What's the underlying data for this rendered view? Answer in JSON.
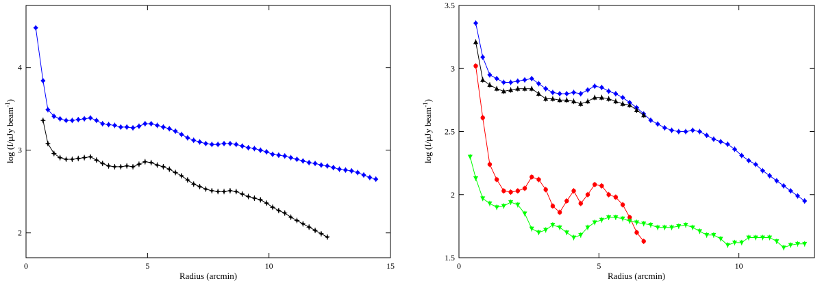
{
  "chart_data": [
    {
      "type": "line",
      "xlabel": "Radius (arcmin)",
      "ylabel_main": "log (I/μJy beam",
      "ylabel_sup": "-1",
      "ylabel_close": ")",
      "xlim": [
        0,
        15
      ],
      "ylim": [
        1.7,
        4.75
      ],
      "xticks": [
        0,
        5,
        10,
        15
      ],
      "xtick_labels": [
        "0",
        "5",
        "10",
        "15"
      ],
      "yticks": [
        2,
        3,
        4
      ],
      "ytick_labels": [
        "2",
        "3",
        "4"
      ],
      "series": [
        {
          "color": "#0000ff",
          "marker": "diamond",
          "x": [
            0.4,
            0.7,
            0.9,
            1.15,
            1.4,
            1.65,
            1.9,
            2.15,
            2.4,
            2.65,
            2.9,
            3.15,
            3.4,
            3.65,
            3.9,
            4.15,
            4.4,
            4.65,
            4.9,
            5.15,
            5.4,
            5.65,
            5.9,
            6.15,
            6.4,
            6.65,
            6.9,
            7.15,
            7.4,
            7.65,
            7.9,
            8.15,
            8.4,
            8.65,
            8.9,
            9.15,
            9.4,
            9.65,
            9.9,
            10.15,
            10.4,
            10.65,
            10.9,
            11.15,
            11.4,
            11.65,
            11.9,
            12.15,
            12.4,
            12.65,
            12.9,
            13.15,
            13.4,
            13.65,
            13.9,
            14.15,
            14.4
          ],
          "y": [
            4.48,
            3.84,
            3.49,
            3.41,
            3.38,
            3.36,
            3.36,
            3.37,
            3.38,
            3.39,
            3.36,
            3.32,
            3.31,
            3.3,
            3.28,
            3.28,
            3.27,
            3.29,
            3.32,
            3.32,
            3.3,
            3.28,
            3.26,
            3.23,
            3.19,
            3.15,
            3.12,
            3.1,
            3.08,
            3.07,
            3.07,
            3.08,
            3.08,
            3.07,
            3.05,
            3.03,
            3.02,
            3.0,
            2.98,
            2.95,
            2.94,
            2.93,
            2.91,
            2.89,
            2.87,
            2.85,
            2.84,
            2.82,
            2.81,
            2.79,
            2.77,
            2.76,
            2.75,
            2.73,
            2.7,
            2.67,
            2.65
          ]
        },
        {
          "color": "#000000",
          "marker": "star",
          "x": [
            0.7,
            0.9,
            1.15,
            1.4,
            1.65,
            1.9,
            2.15,
            2.4,
            2.65,
            2.9,
            3.15,
            3.4,
            3.65,
            3.9,
            4.15,
            4.4,
            4.65,
            4.9,
            5.15,
            5.4,
            5.65,
            5.9,
            6.15,
            6.4,
            6.65,
            6.9,
            7.15,
            7.4,
            7.65,
            7.9,
            8.15,
            8.4,
            8.65,
            8.9,
            9.15,
            9.4,
            9.65,
            9.9,
            10.15,
            10.4,
            10.65,
            10.9,
            11.15,
            11.4,
            11.65,
            11.9,
            12.15,
            12.4
          ],
          "y": [
            3.36,
            3.08,
            2.96,
            2.91,
            2.89,
            2.89,
            2.9,
            2.91,
            2.92,
            2.88,
            2.84,
            2.81,
            2.8,
            2.8,
            2.81,
            2.8,
            2.83,
            2.86,
            2.85,
            2.82,
            2.8,
            2.77,
            2.73,
            2.69,
            2.64,
            2.59,
            2.56,
            2.53,
            2.51,
            2.5,
            2.5,
            2.51,
            2.5,
            2.47,
            2.44,
            2.42,
            2.4,
            2.36,
            2.31,
            2.27,
            2.24,
            2.19,
            2.15,
            2.11,
            2.07,
            2.03,
            1.99,
            1.95
          ]
        }
      ]
    },
    {
      "type": "line",
      "xlabel": "Radius (arcmin)",
      "ylabel_main": "log (I/μJy beam",
      "ylabel_sup": "-1",
      "ylabel_close": ")",
      "xlim": [
        0,
        12.7
      ],
      "ylim": [
        1.5,
        3.5
      ],
      "xticks": [
        0,
        5,
        10
      ],
      "xtick_labels": [
        "0",
        "5",
        "10"
      ],
      "yticks": [
        1.5,
        2,
        2.5,
        3,
        3.5
      ],
      "ytick_labels": [
        "1.5",
        "2",
        "2.5",
        "3",
        "3.5"
      ],
      "series": [
        {
          "color": "#0000ff",
          "marker": "diamond",
          "x": [
            0.6,
            0.85,
            1.1,
            1.35,
            1.6,
            1.85,
            2.1,
            2.35,
            2.6,
            2.85,
            3.1,
            3.35,
            3.6,
            3.85,
            4.1,
            4.35,
            4.6,
            4.85,
            5.1,
            5.35,
            5.6,
            5.85,
            6.1,
            6.35,
            6.6,
            6.85,
            7.1,
            7.35,
            7.6,
            7.85,
            8.1,
            8.35,
            8.6,
            8.85,
            9.1,
            9.35,
            9.6,
            9.85,
            10.1,
            10.35,
            10.6,
            10.85,
            11.1,
            11.35,
            11.6,
            11.85,
            12.1,
            12.35
          ],
          "y": [
            3.36,
            3.09,
            2.95,
            2.92,
            2.89,
            2.89,
            2.9,
            2.91,
            2.92,
            2.88,
            2.84,
            2.81,
            2.8,
            2.8,
            2.81,
            2.8,
            2.83,
            2.86,
            2.85,
            2.82,
            2.8,
            2.77,
            2.73,
            2.69,
            2.64,
            2.59,
            2.56,
            2.53,
            2.51,
            2.5,
            2.5,
            2.51,
            2.5,
            2.47,
            2.44,
            2.42,
            2.4,
            2.36,
            2.31,
            2.27,
            2.24,
            2.19,
            2.15,
            2.11,
            2.07,
            2.03,
            1.99,
            1.95
          ]
        },
        {
          "color": "#000000",
          "marker": "triangle",
          "x": [
            0.6,
            0.85,
            1.1,
            1.35,
            1.6,
            1.85,
            2.1,
            2.35,
            2.6,
            2.85,
            3.1,
            3.35,
            3.6,
            3.85,
            4.1,
            4.35,
            4.6,
            4.85,
            5.1,
            5.35,
            5.6,
            5.85,
            6.1,
            6.35,
            6.6
          ],
          "y": [
            3.21,
            2.91,
            2.87,
            2.84,
            2.82,
            2.83,
            2.84,
            2.84,
            2.84,
            2.8,
            2.76,
            2.76,
            2.75,
            2.75,
            2.74,
            2.72,
            2.74,
            2.77,
            2.77,
            2.76,
            2.74,
            2.72,
            2.71,
            2.67,
            2.63
          ]
        },
        {
          "color": "#ff0000",
          "marker": "circle",
          "x": [
            0.6,
            0.85,
            1.1,
            1.35,
            1.6,
            1.85,
            2.1,
            2.35,
            2.6,
            2.85,
            3.1,
            3.35,
            3.6,
            3.85,
            4.1,
            4.35,
            4.6,
            4.85,
            5.1,
            5.35,
            5.6,
            5.85,
            6.1,
            6.35,
            6.6
          ],
          "y": [
            3.02,
            2.61,
            2.24,
            2.12,
            2.03,
            2.02,
            2.03,
            2.05,
            2.14,
            2.12,
            2.04,
            1.91,
            1.86,
            1.95,
            2.03,
            1.93,
            2.0,
            2.08,
            2.07,
            2.0,
            1.98,
            1.92,
            1.82,
            1.7,
            1.63
          ]
        },
        {
          "color": "#00ff00",
          "marker": "triangle-down",
          "x": [
            0.4,
            0.6,
            0.85,
            1.1,
            1.35,
            1.6,
            1.85,
            2.1,
            2.35,
            2.6,
            2.85,
            3.1,
            3.35,
            3.6,
            3.85,
            4.1,
            4.35,
            4.6,
            4.85,
            5.1,
            5.35,
            5.6,
            5.85,
            6.1,
            6.35,
            6.6,
            6.85,
            7.1,
            7.35,
            7.6,
            7.85,
            8.1,
            8.35,
            8.6,
            8.85,
            9.1,
            9.35,
            9.6,
            9.85,
            10.1,
            10.35,
            10.6,
            10.85,
            11.1,
            11.35,
            11.6,
            11.85,
            12.1,
            12.35
          ],
          "y": [
            2.3,
            2.13,
            1.97,
            1.93,
            1.9,
            1.91,
            1.94,
            1.92,
            1.85,
            1.73,
            1.7,
            1.72,
            1.76,
            1.74,
            1.7,
            1.66,
            1.68,
            1.74,
            1.78,
            1.8,
            1.82,
            1.82,
            1.81,
            1.79,
            1.78,
            1.77,
            1.76,
            1.74,
            1.74,
            1.74,
            1.75,
            1.76,
            1.74,
            1.71,
            1.68,
            1.68,
            1.65,
            1.6,
            1.62,
            1.62,
            1.66,
            1.66,
            1.66,
            1.66,
            1.63,
            1.58,
            1.6,
            1.61,
            1.61
          ]
        }
      ]
    }
  ]
}
